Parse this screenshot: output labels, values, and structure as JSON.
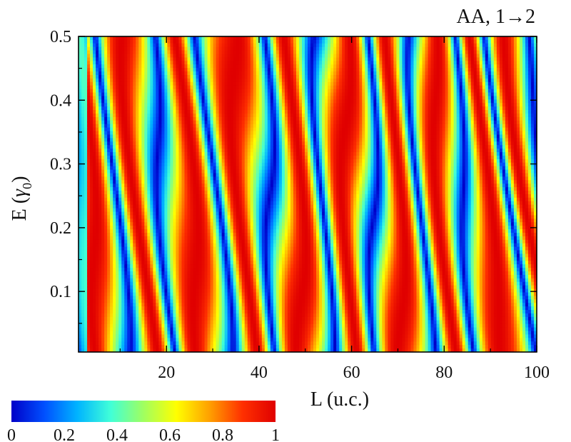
{
  "chart_data": {
    "type": "heatmap",
    "title": "AA, 1→2",
    "xlabel": "L (u.c.)",
    "ylabel_main": "E (",
    "ylabel_sym": "γ",
    "ylabel_sub": "0",
    "ylabel_close": ")",
    "xlim": [
      1,
      100
    ],
    "ylim": [
      0.005,
      0.5
    ],
    "x_ticks": [
      {
        "value": 20,
        "label": "20"
      },
      {
        "value": 40,
        "label": "40"
      },
      {
        "value": 60,
        "label": "60"
      },
      {
        "value": 80,
        "label": "80"
      },
      {
        "value": 100,
        "label": "100"
      }
    ],
    "y_ticks": [
      {
        "value": 0.1,
        "label": "0.1"
      },
      {
        "value": 0.2,
        "label": "0.2"
      },
      {
        "value": 0.3,
        "label": "0.3"
      },
      {
        "value": 0.4,
        "label": "0.4"
      },
      {
        "value": 0.5,
        "label": "0.5"
      }
    ],
    "colorbar": {
      "range": [
        0,
        1
      ],
      "ticks": [
        {
          "value": 0,
          "label": "0"
        },
        {
          "value": 0.2,
          "label": "0.2"
        },
        {
          "value": 0.4,
          "label": "0.4"
        },
        {
          "value": 0.6,
          "label": "0.6"
        },
        {
          "value": 0.8,
          "label": "0.8"
        },
        {
          "value": 1,
          "label": "1"
        }
      ],
      "colormap": [
        "#0000c8",
        "#0050ff",
        "#00b4ff",
        "#40ffd8",
        "#a0ff60",
        "#ffff00",
        "#ffa000",
        "#ff3000",
        "#e00000"
      ]
    },
    "grid": false
  }
}
